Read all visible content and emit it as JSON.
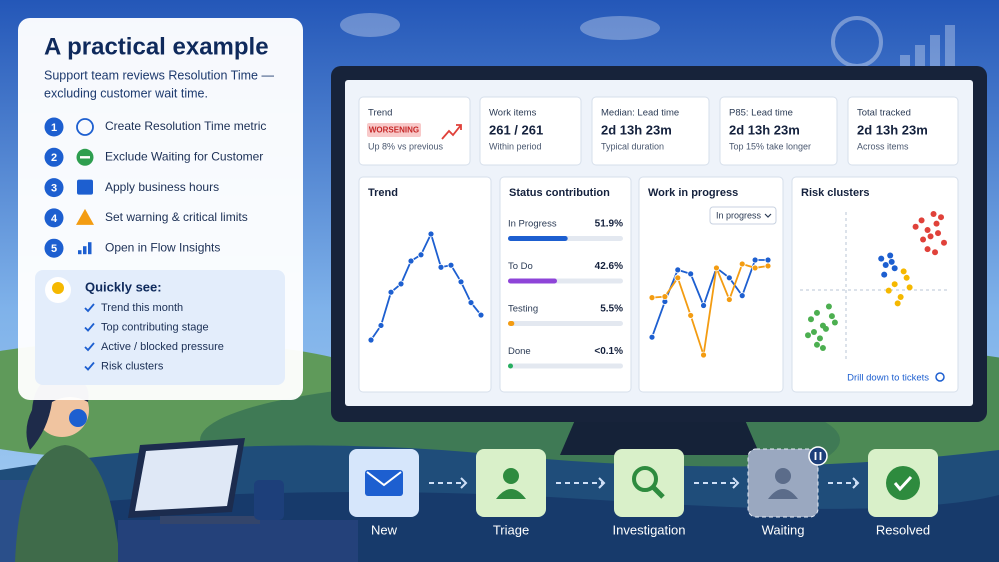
{
  "panel": {
    "title": "A practical example",
    "subtitle": [
      "Support team reviews Resolution Time —",
      "excluding customer wait time."
    ],
    "steps": [
      {
        "number": "1",
        "text": "Create Resolution Time metric"
      },
      {
        "number": "2",
        "text": "Exclude Waiting for Customer"
      },
      {
        "number": "3",
        "text": "Apply business hours"
      },
      {
        "number": "4",
        "text": "Set warning & critical limits"
      },
      {
        "number": "5",
        "text": "Open in Flow Insights"
      }
    ],
    "quick": {
      "title": "Quickly see:",
      "items": [
        "Trend this month",
        "Top contributing stage",
        "Active / blocked pressure",
        "Risk clusters"
      ]
    }
  },
  "dashboard": {
    "kpis": [
      {
        "label": "Trend",
        "badge": "WORSENING",
        "note": "Up 8% vs previous"
      },
      {
        "label": "Work items",
        "value": "261 / 261",
        "note": "Within period"
      },
      {
        "label": "Median: Lead time",
        "value": "2d 13h 23m",
        "note": "Typical duration"
      },
      {
        "label": "P85: Lead time",
        "value": "2d 13h 23m",
        "note": "Top 15% take longer"
      },
      {
        "label": "Total tracked",
        "value": "2d 13h 23m",
        "note": "Across items"
      }
    ],
    "trend": {
      "title": "Trend",
      "color": "#1d5fd0",
      "values": [
        22,
        36,
        68,
        76,
        98,
        104,
        124,
        92,
        94,
        78,
        58,
        46
      ]
    },
    "status": {
      "title": "Status contribution",
      "rows": [
        {
          "name": "In Progress",
          "value": 51.9,
          "label": "51.9%",
          "color": "#1d5fd0"
        },
        {
          "name": "To Do",
          "value": 42.6,
          "label": "42.6%",
          "color": "#8e44d8"
        },
        {
          "name": "Testing",
          "value": 5.5,
          "label": "5.5%",
          "color": "#f39c12"
        },
        {
          "name": "Done",
          "value": 0.1,
          "label": "<0.1%",
          "color": "#27ae60"
        }
      ]
    },
    "wip": {
      "title": "Work in progress",
      "filter": "In progress",
      "series": [
        {
          "color": "#1d5fd0",
          "values": [
            18,
            54,
            86,
            82,
            50,
            88,
            78,
            60,
            96,
            96
          ]
        },
        {
          "color": "#f39c12",
          "values": [
            58,
            59,
            78,
            40,
            0,
            88,
            56,
            92,
            88,
            90
          ]
        }
      ]
    },
    "risk": {
      "title": "Risk clusters",
      "link": "Drill down to tickets",
      "series": [
        {
          "color": "#e0413a",
          "x": [
            78,
            82,
            86,
            90,
            92,
            95,
            83,
            88,
            93,
            97,
            86,
            91
          ],
          "y": [
            80,
            84,
            78,
            88,
            82,
            86,
            72,
            74,
            76,
            70,
            66,
            64
          ]
        },
        {
          "color": "#1d5fd0",
          "x": [
            55,
            58,
            61,
            64,
            57,
            62
          ],
          "y": [
            60,
            56,
            62,
            54,
            50,
            58
          ]
        },
        {
          "color": "#f5b800",
          "x": [
            60,
            64,
            68,
            72,
            66,
            70,
            74
          ],
          "y": [
            40,
            44,
            36,
            48,
            32,
            52,
            42
          ]
        },
        {
          "color": "#4caf50",
          "x": [
            8,
            12,
            16,
            20,
            24,
            10,
            14,
            18,
            22,
            12,
            16,
            6
          ],
          "y": [
            22,
            26,
            18,
            30,
            20,
            14,
            10,
            16,
            24,
            6,
            4,
            12
          ]
        }
      ]
    }
  },
  "flow": {
    "stages": [
      "New",
      "Triage",
      "Investigation",
      "Waiting",
      "Resolved"
    ]
  }
}
